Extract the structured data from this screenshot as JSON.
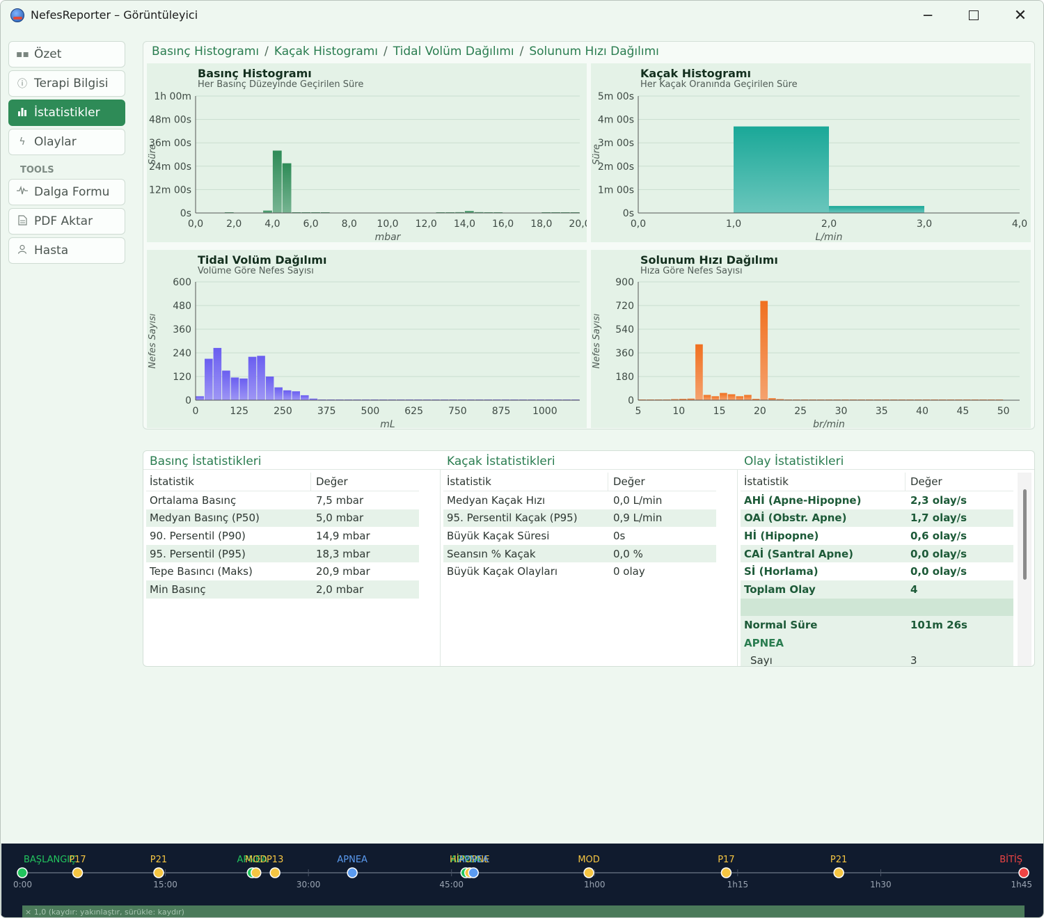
{
  "window": {
    "title": "NefesReporter – Görüntüleyici"
  },
  "sidebar": {
    "items": [
      {
        "label": "Özet",
        "icon": "grid-icon"
      },
      {
        "label": "Terapi Bilgisi",
        "icon": "info-icon"
      },
      {
        "label": "İstatistikler",
        "icon": "bar-chart-icon"
      },
      {
        "label": "Olaylar",
        "icon": "bolt-icon"
      }
    ],
    "section": "TOOLS",
    "tools": [
      {
        "label": "Dalga Formu",
        "icon": "waveform-icon"
      },
      {
        "label": "PDF Aktar",
        "icon": "document-icon"
      },
      {
        "label": "Hasta",
        "icon": "person-icon"
      }
    ]
  },
  "histograms": {
    "breadcrumb": [
      "Basınç Histogramı",
      "Kaçak Histogramı",
      "Tidal Volüm Dağılımı",
      "Solunum Hızı Dağılımı"
    ]
  },
  "chart_data": [
    {
      "type": "bar",
      "title": "Basınç Histogramı",
      "subtitle": "Her Basınç Düzeyinde Geçirilen Süre",
      "xlabel": "mbar",
      "ylabel": "Süre",
      "xlim": [
        0,
        20
      ],
      "ylim": [
        0,
        60
      ],
      "x_ticks": [
        "0,0",
        "2,0",
        "4,0",
        "6,0",
        "8,0",
        "10,0",
        "12,0",
        "14,0",
        "16,0",
        "18,0",
        "20,0"
      ],
      "y_ticks": [
        "0s",
        "12m 00s",
        "24m 00s",
        "36m 00s",
        "48m 00s",
        "1h 00m"
      ],
      "bin_width": 0.5,
      "bins": [
        {
          "x": 0.5,
          "y": 0
        },
        {
          "x": 1.0,
          "y": 0
        },
        {
          "x": 1.5,
          "y": 0
        },
        {
          "x": 2.0,
          "y": 0.1
        },
        {
          "x": 2.5,
          "y": 0
        },
        {
          "x": 3.0,
          "y": 0
        },
        {
          "x": 3.5,
          "y": 0
        },
        {
          "x": 4.0,
          "y": 1.2
        },
        {
          "x": 4.5,
          "y": 32
        },
        {
          "x": 5.0,
          "y": 25.5
        },
        {
          "x": 5.5,
          "y": 0.3
        },
        {
          "x": 6.0,
          "y": 0.3
        },
        {
          "x": 6.5,
          "y": 0.2
        },
        {
          "x": 7.0,
          "y": 0.1
        },
        {
          "x": 7.5,
          "y": 0
        },
        {
          "x": 8.0,
          "y": 0
        },
        {
          "x": 8.5,
          "y": 0
        },
        {
          "x": 9.0,
          "y": 0
        },
        {
          "x": 9.5,
          "y": 0
        },
        {
          "x": 10.0,
          "y": 0
        },
        {
          "x": 10.5,
          "y": 0
        },
        {
          "x": 11.0,
          "y": 0
        },
        {
          "x": 11.5,
          "y": 0
        },
        {
          "x": 12.0,
          "y": 0
        },
        {
          "x": 12.5,
          "y": 0
        },
        {
          "x": 13.0,
          "y": 0.2
        },
        {
          "x": 13.5,
          "y": 0.3
        },
        {
          "x": 14.0,
          "y": 0.4
        },
        {
          "x": 14.5,
          "y": 1.0
        },
        {
          "x": 15.0,
          "y": 0.4
        },
        {
          "x": 15.5,
          "y": 0.2
        },
        {
          "x": 16.0,
          "y": 0.1
        },
        {
          "x": 16.5,
          "y": 0
        },
        {
          "x": 17.0,
          "y": 0
        },
        {
          "x": 17.5,
          "y": 0
        },
        {
          "x": 18.0,
          "y": 0
        },
        {
          "x": 18.5,
          "y": 0.1
        },
        {
          "x": 19.0,
          "y": 0.2
        },
        {
          "x": 19.5,
          "y": 0.3
        },
        {
          "x": 20.0,
          "y": 0.1
        }
      ],
      "color": "#2e8b57"
    },
    {
      "type": "bar",
      "title": "Kaçak Histogramı",
      "subtitle": "Her Kaçak Oranında Geçirilen Süre",
      "xlabel": "L/min",
      "ylabel": "Süre",
      "xlim": [
        0,
        4
      ],
      "ylim": [
        0,
        5
      ],
      "x_ticks": [
        "0,0",
        "1,0",
        "2,0",
        "3,0",
        "4,0"
      ],
      "y_ticks": [
        "0s",
        "1m 00s",
        "2m 00s",
        "3m 00s",
        "4m 00s",
        "5m 00s"
      ],
      "bins": [
        {
          "x0": 1.0,
          "x1": 2.0,
          "y": 3.7
        },
        {
          "x0": 2.0,
          "x1": 3.0,
          "y": 0.3
        }
      ],
      "color": "#1aa898"
    },
    {
      "type": "bar",
      "title": "Tidal Volüm Dağılımı",
      "subtitle": "Volüme Göre Nefes Sayısı",
      "xlabel": "mL",
      "ylabel": "Nefes Sayısı",
      "xlim": [
        0,
        1100
      ],
      "ylim": [
        0,
        600
      ],
      "x_ticks": [
        "0",
        "125",
        "250",
        "375",
        "500",
        "625",
        "750",
        "875",
        "1000"
      ],
      "y_ticks": [
        "0",
        "120",
        "240",
        "360",
        "480",
        "600"
      ],
      "bin_width": 25,
      "bins": [
        {
          "x": 25,
          "y": 20
        },
        {
          "x": 50,
          "y": 210
        },
        {
          "x": 75,
          "y": 265
        },
        {
          "x": 100,
          "y": 150
        },
        {
          "x": 125,
          "y": 115
        },
        {
          "x": 150,
          "y": 110
        },
        {
          "x": 175,
          "y": 220
        },
        {
          "x": 200,
          "y": 225
        },
        {
          "x": 225,
          "y": 120
        },
        {
          "x": 250,
          "y": 65
        },
        {
          "x": 275,
          "y": 50
        },
        {
          "x": 300,
          "y": 45
        },
        {
          "x": 325,
          "y": 25
        },
        {
          "x": 350,
          "y": 8
        },
        {
          "x": 375,
          "y": 3
        },
        {
          "x": 400,
          "y": 2
        },
        {
          "x": 425,
          "y": 2
        },
        {
          "x": 450,
          "y": 1
        },
        {
          "x": 475,
          "y": 1
        },
        {
          "x": 500,
          "y": 1
        },
        {
          "x": 525,
          "y": 1
        },
        {
          "x": 550,
          "y": 1
        },
        {
          "x": 575,
          "y": 1
        },
        {
          "x": 600,
          "y": 1
        },
        {
          "x": 625,
          "y": 1
        },
        {
          "x": 650,
          "y": 1
        },
        {
          "x": 675,
          "y": 1
        },
        {
          "x": 700,
          "y": 1
        },
        {
          "x": 725,
          "y": 1
        },
        {
          "x": 750,
          "y": 1
        },
        {
          "x": 775,
          "y": 1
        },
        {
          "x": 800,
          "y": 1
        },
        {
          "x": 825,
          "y": 1
        },
        {
          "x": 850,
          "y": 1
        },
        {
          "x": 875,
          "y": 1
        },
        {
          "x": 900,
          "y": 1
        },
        {
          "x": 925,
          "y": 1
        },
        {
          "x": 950,
          "y": 1
        },
        {
          "x": 975,
          "y": 1
        },
        {
          "x": 1000,
          "y": 1
        },
        {
          "x": 1025,
          "y": 1
        },
        {
          "x": 1050,
          "y": 1
        },
        {
          "x": 1075,
          "y": 1
        },
        {
          "x": 1100,
          "y": 1
        }
      ],
      "color": "#6a5ef0"
    },
    {
      "type": "bar",
      "title": "Solunum Hızı Dağılımı",
      "subtitle": "Hıza Göre Nefes Sayısı",
      "xlabel": "br/min",
      "ylabel": "Nefes Sayısı",
      "xlim": [
        5,
        52
      ],
      "ylim": [
        0,
        900
      ],
      "x_ticks": [
        "5",
        "10",
        "15",
        "20",
        "25",
        "30",
        "35",
        "40",
        "45",
        "50"
      ],
      "y_ticks": [
        "0",
        "180",
        "360",
        "540",
        "720",
        "900"
      ],
      "bin_width": 1,
      "bins": [
        {
          "x": 6,
          "y": 2
        },
        {
          "x": 7,
          "y": 2
        },
        {
          "x": 8,
          "y": 3
        },
        {
          "x": 9,
          "y": 3
        },
        {
          "x": 10,
          "y": 8
        },
        {
          "x": 11,
          "y": 10
        },
        {
          "x": 12,
          "y": 12
        },
        {
          "x": 13,
          "y": 425
        },
        {
          "x": 14,
          "y": 40
        },
        {
          "x": 15,
          "y": 30
        },
        {
          "x": 16,
          "y": 55
        },
        {
          "x": 17,
          "y": 45
        },
        {
          "x": 18,
          "y": 30
        },
        {
          "x": 19,
          "y": 40
        },
        {
          "x": 20,
          "y": 10
        },
        {
          "x": 21,
          "y": 755
        },
        {
          "x": 22,
          "y": 15
        },
        {
          "x": 23,
          "y": 8
        },
        {
          "x": 24,
          "y": 5
        },
        {
          "x": 25,
          "y": 4
        },
        {
          "x": 26,
          "y": 3
        },
        {
          "x": 27,
          "y": 2
        },
        {
          "x": 28,
          "y": 2
        },
        {
          "x": 29,
          "y": 2
        },
        {
          "x": 30,
          "y": 2
        },
        {
          "x": 31,
          "y": 1
        },
        {
          "x": 32,
          "y": 1
        },
        {
          "x": 33,
          "y": 1
        },
        {
          "x": 34,
          "y": 1
        },
        {
          "x": 35,
          "y": 1
        },
        {
          "x": 36,
          "y": 1
        },
        {
          "x": 37,
          "y": 1
        },
        {
          "x": 38,
          "y": 1
        },
        {
          "x": 39,
          "y": 1
        },
        {
          "x": 40,
          "y": 1
        },
        {
          "x": 41,
          "y": 1
        },
        {
          "x": 42,
          "y": 1
        },
        {
          "x": 43,
          "y": 1
        },
        {
          "x": 44,
          "y": 1
        },
        {
          "x": 45,
          "y": 1
        },
        {
          "x": 46,
          "y": 1
        },
        {
          "x": 47,
          "y": 1
        },
        {
          "x": 48,
          "y": 1
        },
        {
          "x": 49,
          "y": 1
        },
        {
          "x": 50,
          "y": 1
        }
      ],
      "color": "#f07020"
    }
  ],
  "stats": {
    "pressure": {
      "title": "Basınç İstatistikleri",
      "header": [
        "İstatistik",
        "Değer"
      ],
      "rows": [
        [
          "Ortalama Basınç",
          "7,5 mbar"
        ],
        [
          "Medyan Basınç (P50)",
          "5,0 mbar"
        ],
        [
          "90. Persentil (P90)",
          "14,9 mbar"
        ],
        [
          "95. Persentil (P95)",
          "18,3 mbar"
        ],
        [
          "Tepe Basıncı (Maks)",
          "20,9 mbar"
        ],
        [
          "Min Basınç",
          "2,0 mbar"
        ]
      ]
    },
    "leak": {
      "title": "Kaçak İstatistikleri",
      "header": [
        "İstatistik",
        "Değer"
      ],
      "rows": [
        [
          "Medyan Kaçak Hızı",
          "0,0 L/min"
        ],
        [
          "95. Persentil Kaçak (P95)",
          "0,9 L/min"
        ],
        [
          "Büyük Kaçak Süresi",
          "0s"
        ],
        [
          "Seansın % Kaçak",
          "0,0 %"
        ],
        [
          "Büyük Kaçak Olayları",
          "0 olay"
        ]
      ]
    },
    "events": {
      "title": "Olay İstatistikleri",
      "header": [
        "İstatistik",
        "Değer"
      ],
      "rows": [
        [
          "AHİ  (Apne-Hipopne)",
          "2,3  olay/s"
        ],
        [
          "OAİ  (Obstr. Apne)",
          "1,7  olay/s"
        ],
        [
          "Hİ   (Hipopne)",
          "0,6  olay/s"
        ],
        [
          "CAİ  (Santral Apne)",
          "0,0  olay/s"
        ],
        [
          "Sİ   (Horlama)",
          "0,0  olay/s"
        ],
        [
          "Toplam Olay",
          "4"
        ],
        [
          "",
          ""
        ],
        [
          "Normal Süre",
          "101m 26s"
        ],
        [
          "APNEA",
          ""
        ],
        [
          "Sayı",
          "3"
        ]
      ]
    }
  },
  "timeline": {
    "range_minutes": [
      0,
      105
    ],
    "ticks": [
      "0:00",
      "15:00",
      "30:00",
      "45:00",
      "1h00",
      "1h15",
      "1h30",
      "1h45"
    ],
    "markers": [
      {
        "label": "BAŞLANGIÇ",
        "t": 0,
        "color": "#22c55e"
      },
      {
        "label": "P17",
        "t": 5.8,
        "color": "#f5c542"
      },
      {
        "label": "P21",
        "t": 14.3,
        "color": "#f5c542"
      },
      {
        "label": "APNEA",
        "t": 24.1,
        "color": "#22c55e"
      },
      {
        "label": "MOD",
        "t": 24.5,
        "color": "#f5c542"
      },
      {
        "label": "P13",
        "t": 26.5,
        "color": "#f5c542"
      },
      {
        "label": "APNEA",
        "t": 34.6,
        "color": "#5b9bf0"
      },
      {
        "label": "APNEA",
        "t": 46.5,
        "color": "#22c55e"
      },
      {
        "label": "HİPOPNE",
        "t": 46.9,
        "color": "#f5c542"
      },
      {
        "label": "APNEA",
        "t": 47.3,
        "color": "#5b9bf0"
      },
      {
        "label": "MOD",
        "t": 59.4,
        "color": "#f5c542"
      },
      {
        "label": "P17",
        "t": 73.8,
        "color": "#f5c542"
      },
      {
        "label": "P21",
        "t": 85.6,
        "color": "#f5c542"
      },
      {
        "label": "BİTİŞ",
        "t": 105,
        "color": "#ef4444"
      }
    ],
    "zoom_hint": "× 1,0  (kaydır: yakınlaştır, sürükle: kaydır)"
  }
}
